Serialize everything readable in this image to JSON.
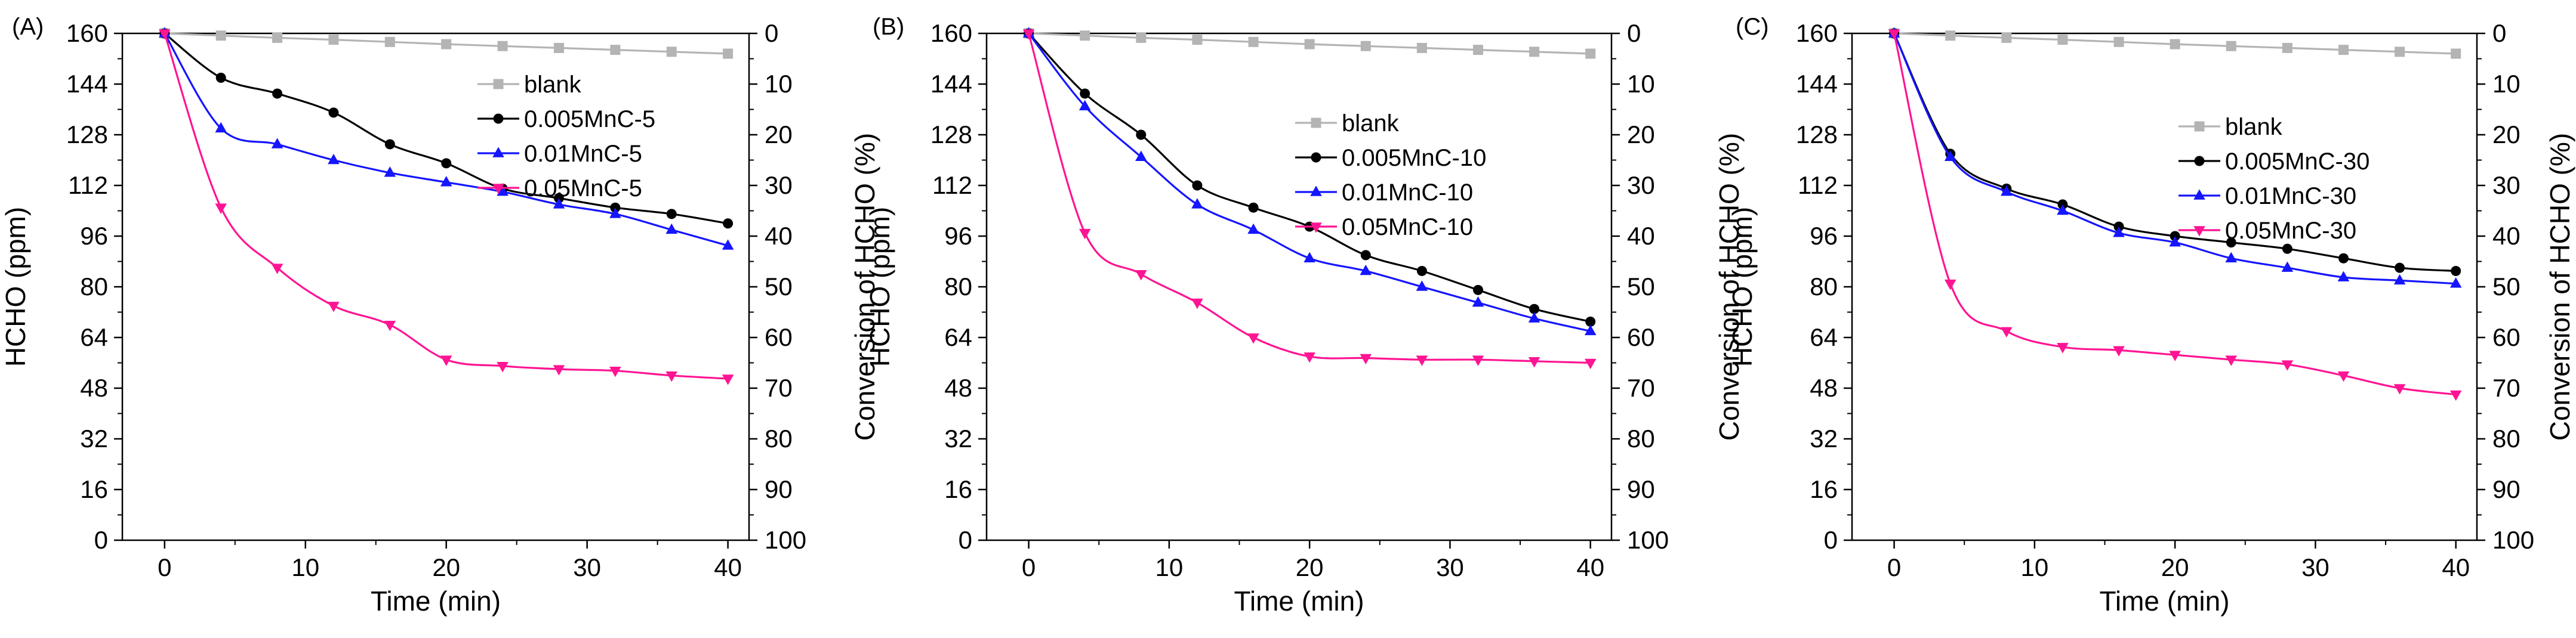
{
  "chart_data": [
    {
      "type": "line",
      "panel_label": "(A)",
      "xlabel": "Time (min)",
      "ylabel": "HCHO (ppm)",
      "y2label": "Conversion of HCHO (%)",
      "xlim": [
        -3,
        41.5
      ],
      "ylim": [
        0,
        160
      ],
      "xticks": [
        0,
        10,
        20,
        30,
        40
      ],
      "yticks": [
        0,
        16,
        32,
        48,
        64,
        80,
        96,
        112,
        128,
        144,
        160
      ],
      "y2ticks": [
        0,
        10,
        20,
        30,
        40,
        50,
        60,
        70,
        80,
        90,
        100
      ],
      "legend": {
        "position": "top-right"
      },
      "series": [
        {
          "name": "blank",
          "color": "#b4b4b4",
          "marker": "square",
          "x": [
            0,
            4,
            8,
            12,
            16,
            20,
            24,
            28,
            32,
            36,
            40
          ],
          "y": [
            160,
            159.3,
            158.6,
            158,
            157.3,
            156.6,
            156,
            155.4,
            154.8,
            154.2,
            153.6
          ]
        },
        {
          "name": "0.005MnC-5",
          "color": "#000000",
          "marker": "circle",
          "x": [
            0,
            4,
            8,
            12,
            16,
            20,
            24,
            28,
            32,
            36,
            40
          ],
          "y": [
            160,
            146,
            141,
            135,
            125,
            119,
            111,
            108,
            105,
            103,
            100
          ]
        },
        {
          "name": "0.01MnC-5",
          "color": "#1515ff",
          "marker": "triangle-up",
          "x": [
            0,
            4,
            8,
            12,
            16,
            20,
            24,
            28,
            32,
            36,
            40
          ],
          "y": [
            160,
            130,
            125,
            120,
            116,
            113,
            110,
            106,
            103,
            98,
            93
          ]
        },
        {
          "name": "0.05MnC-5",
          "color": "#ff1493",
          "marker": "triangle-down",
          "x": [
            0,
            4,
            8,
            12,
            16,
            20,
            24,
            28,
            32,
            36,
            40
          ],
          "y": [
            160,
            105,
            86,
            74,
            68,
            57,
            55,
            54,
            53.5,
            52,
            51
          ]
        }
      ]
    },
    {
      "type": "line",
      "panel_label": "(B)",
      "xlabel": "Time (min)",
      "ylabel": "HCHO (ppm)",
      "y2label": "Conversion of HCHO (%)",
      "xlim": [
        -3,
        41.5
      ],
      "ylim": [
        0,
        160
      ],
      "xticks": [
        0,
        10,
        20,
        30,
        40
      ],
      "yticks": [
        0,
        16,
        32,
        48,
        64,
        80,
        96,
        112,
        128,
        144,
        160
      ],
      "y2ticks": [
        0,
        10,
        20,
        30,
        40,
        50,
        60,
        70,
        80,
        90,
        100
      ],
      "legend": {
        "position": "top-right"
      },
      "series": [
        {
          "name": "blank",
          "color": "#b4b4b4",
          "marker": "square",
          "x": [
            0,
            4,
            8,
            12,
            16,
            20,
            24,
            28,
            32,
            36,
            40
          ],
          "y": [
            160,
            159.3,
            158.6,
            158,
            157.3,
            156.6,
            156,
            155.4,
            154.8,
            154.2,
            153.6
          ]
        },
        {
          "name": "0.005MnC-10",
          "color": "#000000",
          "marker": "circle",
          "x": [
            0,
            4,
            8,
            12,
            16,
            20,
            24,
            28,
            32,
            36,
            40
          ],
          "y": [
            160,
            141,
            128,
            112,
            105,
            99,
            90,
            85,
            79,
            73,
            69
          ]
        },
        {
          "name": "0.01MnC-10",
          "color": "#1515ff",
          "marker": "triangle-up",
          "x": [
            0,
            4,
            8,
            12,
            16,
            20,
            24,
            28,
            32,
            36,
            40
          ],
          "y": [
            160,
            137,
            121,
            106,
            98,
            89,
            85,
            80,
            75,
            70,
            66
          ]
        },
        {
          "name": "0.05MnC-10",
          "color": "#ff1493",
          "marker": "triangle-down",
          "x": [
            0,
            4,
            8,
            12,
            16,
            20,
            24,
            28,
            32,
            36,
            40
          ],
          "y": [
            160,
            97,
            84,
            75,
            64,
            58,
            57.5,
            57,
            57,
            56.5,
            56
          ]
        }
      ]
    },
    {
      "type": "line",
      "panel_label": "(C)",
      "xlabel": "Time (min)",
      "ylabel": "HCHO (ppm)",
      "y2label": "Conversion of HCHO (%)",
      "xlim": [
        -3,
        41.5
      ],
      "ylim": [
        0,
        160
      ],
      "xticks": [
        0,
        10,
        20,
        30,
        40
      ],
      "yticks": [
        0,
        16,
        32,
        48,
        64,
        80,
        96,
        112,
        128,
        144,
        160
      ],
      "y2ticks": [
        0,
        10,
        20,
        30,
        40,
        50,
        60,
        70,
        80,
        90,
        100
      ],
      "legend": {
        "position": "top-right"
      },
      "series": [
        {
          "name": "blank",
          "color": "#b4b4b4",
          "marker": "square",
          "x": [
            0,
            4,
            8,
            12,
            16,
            20,
            24,
            28,
            32,
            36,
            40
          ],
          "y": [
            160,
            159.3,
            158.6,
            158,
            157.3,
            156.6,
            156,
            155.4,
            154.8,
            154.2,
            153.6
          ]
        },
        {
          "name": "0.005MnC-30",
          "color": "#000000",
          "marker": "circle",
          "x": [
            0,
            4,
            8,
            12,
            16,
            20,
            24,
            28,
            32,
            36,
            40
          ],
          "y": [
            160,
            122,
            111,
            106,
            99,
            96,
            94,
            92,
            89,
            86,
            85
          ]
        },
        {
          "name": "0.01MnC-30",
          "color": "#1515ff",
          "marker": "triangle-up",
          "x": [
            0,
            4,
            8,
            12,
            16,
            20,
            24,
            28,
            32,
            36,
            40
          ],
          "y": [
            160,
            121,
            110,
            104,
            97,
            94,
            89,
            86,
            83,
            82,
            81
          ]
        },
        {
          "name": "0.05MnC-30",
          "color": "#ff1493",
          "marker": "triangle-down",
          "x": [
            0,
            4,
            8,
            12,
            16,
            20,
            24,
            28,
            32,
            36,
            40
          ],
          "y": [
            160,
            81,
            66,
            61,
            60,
            58.5,
            57,
            55.5,
            52,
            48,
            46
          ]
        }
      ]
    }
  ]
}
